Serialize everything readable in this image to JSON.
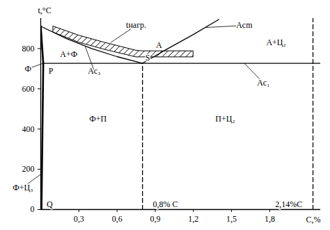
{
  "chart_data": {
    "type": "line",
    "x_label": "C,%",
    "y_label": "t,°C",
    "xlim": [
      0,
      2.2
    ],
    "ylim": [
      0,
      950
    ],
    "xticks": [
      {
        "value": 0.3,
        "label": "0,3"
      },
      {
        "value": 0.6,
        "label": "0,6"
      },
      {
        "value": 0.9,
        "label": "0,9"
      },
      {
        "value": 1.2,
        "label": "1,2"
      },
      {
        "value": 1.5,
        "label": "1,5"
      },
      {
        "value": 1.8,
        "label": "1,8"
      }
    ],
    "yticks": [
      0,
      200,
      400,
      600,
      800
    ],
    "series": [
      {
        "x": [
          0,
          0.2,
          0.4,
          0.6,
          0.8
        ],
        "values": [
          911,
          850,
          800,
          760,
          727
        ],
        "color": "#000000",
        "line_style": "solid"
      },
      {
        "x": [
          0.8,
          1.0,
          1.2,
          1.4
        ],
        "values": [
          727,
          800,
          870,
          945
        ],
        "color": "#000000",
        "line_style": "solid"
      },
      {
        "x": [
          0.02,
          2.2
        ],
        "values": [
          727,
          727
        ],
        "color": "#000000",
        "line_style": "solid"
      },
      {
        "x": [
          0,
          0.02
        ],
        "values": [
          911,
          727
        ],
        "color": "#000000",
        "line_style": "bold"
      },
      {
        "x": [
          0.02,
          0.006
        ],
        "values": [
          727,
          0
        ],
        "color": "#000000",
        "line_style": "bold"
      },
      {
        "x": [
          0.8,
          0.8
        ],
        "values": [
          0,
          727
        ],
        "color": "#000000",
        "line_style": "dashed"
      },
      {
        "x": [
          2.14,
          2.14
        ],
        "values": [
          0,
          950
        ],
        "color": "#000000",
        "line_style": "dashed"
      }
    ],
    "band": {
      "x": [
        0.1,
        0.3,
        0.5,
        0.75,
        0.8,
        1.2
      ],
      "lower": [
        880,
        830,
        795,
        757,
        757,
        757
      ],
      "upper": [
        910,
        865,
        830,
        790,
        787,
        787
      ],
      "color": "#000000"
    },
    "annotations": [
      {
        "text": "Ф",
        "x": -0.1,
        "y": 700,
        "to": [
          0.02,
          727
        ]
      },
      {
        "text": "tнагр.",
        "x": 0.75,
        "y": 915,
        "to": [
          0.55,
          830
        ]
      },
      {
        "text": "А+Ф",
        "x": 0.22,
        "y": 770
      },
      {
        "text": "Ac₃",
        "x": 0.42,
        "y": 690,
        "to": [
          0.35,
          810
        ]
      },
      {
        "text": "Р",
        "x": 0.08,
        "y": 690
      },
      {
        "text": "S",
        "x": 0.84,
        "y": 755
      },
      {
        "text": "А",
        "x": 0.93,
        "y": 815
      },
      {
        "text": "Acm",
        "x": 1.6,
        "y": 915,
        "to": [
          1.3,
          905
        ]
      },
      {
        "text": "А+Ц₂",
        "x": 1.85,
        "y": 830
      },
      {
        "text": "Ac₁",
        "x": 1.75,
        "y": 630,
        "to": [
          1.6,
          727
        ]
      },
      {
        "text": "Ф+П",
        "x": 0.45,
        "y": 450
      },
      {
        "text": "П+Ц₂",
        "x": 1.45,
        "y": 450
      },
      {
        "text": "Ф+Ц₃",
        "x": -0.14,
        "y": 110,
        "to": [
          0.01,
          180
        ]
      },
      {
        "text": "Q",
        "x": 0.07,
        "y": 25
      },
      {
        "text": "0,8% С",
        "x": 0.98,
        "y": 25
      },
      {
        "text": "2,14%С",
        "x": 1.95,
        "y": 25
      }
    ]
  }
}
